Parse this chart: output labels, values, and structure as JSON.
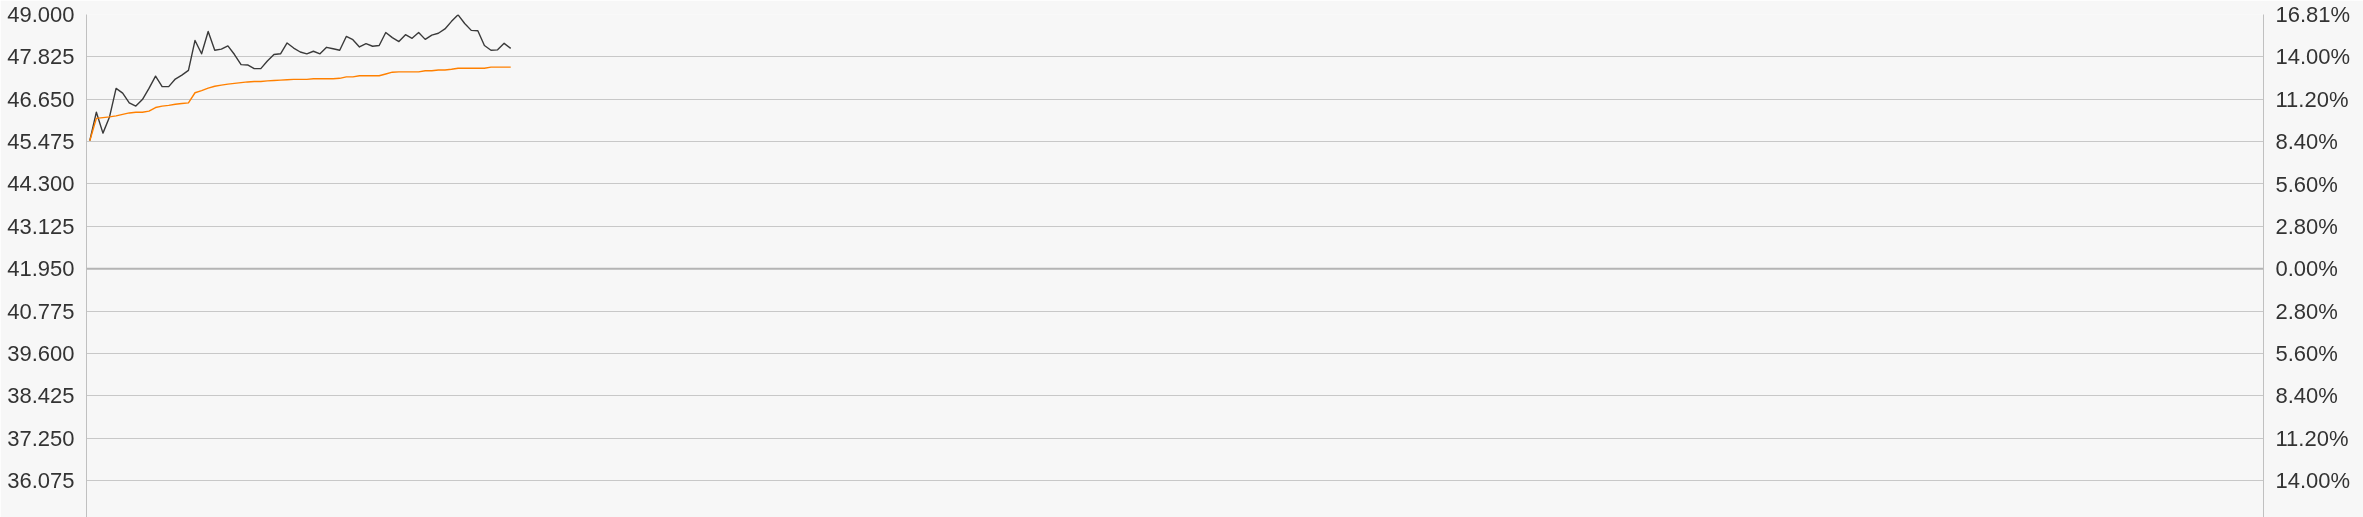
{
  "chart_data": {
    "type": "line",
    "categories": [
      null,
      null,
      null,
      null,
      null,
      null,
      null,
      null,
      null,
      null,
      null,
      null,
      null,
      null,
      null,
      null,
      null,
      null,
      null,
      null,
      null,
      null,
      null,
      null,
      null,
      null,
      null,
      null,
      null,
      null,
      null,
      null,
      null,
      null,
      null,
      null,
      null,
      null,
      null,
      null,
      null,
      null,
      null,
      null,
      null,
      null,
      null,
      null,
      null,
      null,
      null,
      null,
      null,
      null,
      null,
      null,
      null,
      null,
      null,
      null,
      null,
      null,
      null,
      null,
      null,
      null,
      null,
      null,
      null,
      null,
      null,
      null,
      null,
      null,
      null,
      null,
      null,
      null,
      null,
      null,
      null,
      null,
      null,
      null,
      null,
      null,
      null,
      null,
      null,
      null,
      null,
      null,
      null,
      null,
      null,
      null,
      null,
      null,
      null,
      null,
      null,
      null,
      null,
      null,
      null,
      null,
      null,
      null,
      null,
      null,
      null,
      null,
      null,
      null,
      null,
      null,
      null,
      null,
      null,
      null,
      null,
      null,
      null,
      null,
      null,
      null,
      null,
      null,
      null,
      null,
      null,
      null,
      null,
      null,
      null,
      null,
      null,
      null,
      null,
      null,
      null,
      null,
      null,
      null,
      null,
      null,
      null,
      null,
      null,
      null,
      null,
      null,
      null,
      null,
      null,
      null,
      null,
      null,
      null,
      null,
      null,
      null,
      null,
      null,
      null,
      null,
      null,
      null,
      null,
      null,
      null,
      null,
      null,
      null,
      null,
      null,
      null,
      null,
      null,
      null,
      null,
      null,
      null,
      null,
      null,
      null,
      null,
      null,
      null,
      null,
      null,
      null,
      null,
      null,
      null,
      null,
      null,
      null,
      null,
      null,
      null,
      null,
      null,
      null,
      null,
      null,
      null,
      null,
      null,
      null,
      null,
      null,
      null,
      null,
      null,
      null,
      null,
      null,
      null,
      null,
      null,
      null,
      null,
      null,
      null,
      null,
      null,
      null,
      null,
      null,
      null,
      null,
      null,
      null,
      null,
      null,
      null,
      null,
      null,
      null,
      null,
      null,
      null,
      null,
      null,
      null,
      null,
      null,
      null,
      null,
      null,
      null,
      null,
      null,
      null,
      null,
      null,
      null,
      null,
      null,
      null,
      null,
      null,
      null,
      null,
      null,
      null,
      null,
      null,
      null,
      null,
      null,
      null,
      null,
      null,
      null,
      null,
      null,
      null,
      null,
      null,
      null,
      null,
      null,
      null,
      null,
      null,
      null,
      null,
      null,
      null,
      null,
      null,
      null,
      null,
      null,
      null,
      null,
      null,
      null,
      null,
      null,
      null,
      null,
      null,
      null,
      null,
      null,
      null,
      null,
      null,
      null,
      null,
      null,
      null,
      null,
      null,
      null,
      null,
      null,
      null,
      null,
      null,
      null,
      null,
      null,
      null,
      null,
      null,
      null,
      null
    ],
    "series": [
      {
        "color": "#3a3a3a",
        "values": [
          45.5,
          46.29,
          45.71,
          46.16,
          46.95,
          46.82,
          46.55,
          46.46,
          46.64,
          46.95,
          47.29,
          47.0,
          47.0,
          47.21,
          47.32,
          47.45,
          48.28,
          47.91,
          48.53,
          48.01,
          48.04,
          48.13,
          47.89,
          47.61,
          47.6,
          47.5,
          47.5,
          47.71,
          47.89,
          47.91,
          48.21,
          48.07,
          47.96,
          47.91,
          47.98,
          47.91,
          48.09,
          48.05,
          48.01,
          48.39,
          48.3,
          48.1,
          48.19,
          48.12,
          48.14,
          48.5,
          48.36,
          48.25,
          48.44,
          48.34,
          48.5,
          48.31,
          48.43,
          48.48,
          48.6,
          48.81,
          48.99,
          48.75,
          48.56,
          48.55,
          48.14,
          48.01,
          48.02,
          48.2,
          48.06,
          null,
          null,
          null,
          null,
          null,
          null,
          null,
          null,
          null,
          null,
          null,
          null,
          null,
          null,
          null,
          null,
          null,
          null,
          null,
          null,
          null,
          null,
          null,
          null,
          null,
          null,
          null,
          null,
          null,
          null,
          null,
          null,
          null,
          null,
          null,
          null,
          null,
          null,
          null,
          null,
          null,
          null,
          null,
          null,
          null,
          null,
          null,
          null,
          null,
          null,
          null,
          null,
          null,
          null,
          null,
          null,
          null,
          null,
          null,
          null,
          null,
          null,
          null,
          null,
          null,
          null,
          null,
          null,
          null,
          null,
          null,
          null,
          null,
          null,
          null,
          null,
          null,
          null,
          null,
          null,
          null,
          null,
          null,
          null,
          null,
          null,
          null,
          null,
          null,
          null,
          null,
          null,
          null,
          null,
          null,
          null,
          null,
          null,
          null,
          null,
          null,
          null,
          null,
          null,
          null,
          null,
          null,
          null,
          null,
          null,
          null,
          null,
          null,
          null,
          null,
          null,
          null,
          null,
          null,
          null,
          null,
          null,
          null,
          null,
          null,
          null,
          null,
          null,
          null,
          null,
          null,
          null,
          null,
          null,
          null,
          null,
          null,
          null,
          null,
          null,
          null,
          null,
          null,
          null,
          null,
          null,
          null,
          null,
          null,
          null,
          null,
          null,
          null,
          null,
          null,
          null,
          null,
          null,
          null,
          null,
          null,
          null,
          null,
          null,
          null,
          null,
          null,
          null,
          null,
          null,
          null,
          null,
          null,
          null,
          null,
          null,
          null,
          null,
          null,
          null,
          null,
          null,
          null,
          null,
          null,
          null,
          null,
          null,
          null,
          null,
          null,
          null,
          null,
          null,
          null,
          null,
          null,
          null,
          null,
          null,
          null,
          null,
          null,
          null,
          null,
          null,
          null,
          null,
          null,
          null,
          null,
          null,
          null,
          null,
          null,
          null,
          null,
          null,
          null,
          null,
          null,
          null,
          null,
          null,
          null,
          null,
          null,
          null,
          null,
          null,
          null,
          null,
          null,
          null,
          null,
          null,
          null,
          null,
          null,
          null,
          null,
          null,
          null,
          null,
          null,
          null,
          null,
          null,
          null,
          null,
          null,
          null,
          null,
          null,
          null,
          null,
          null,
          null,
          null,
          null,
          null,
          null,
          null,
          null,
          null,
          null
        ]
      },
      {
        "color": "#ff8000",
        "values": [
          45.5,
          46.12,
          46.14,
          46.16,
          46.19,
          46.23,
          46.27,
          46.29,
          46.29,
          46.32,
          46.42,
          46.46,
          46.48,
          46.51,
          46.53,
          46.55,
          46.83,
          46.89,
          46.96,
          47.01,
          47.04,
          47.07,
          47.09,
          47.11,
          47.13,
          47.14,
          47.14,
          47.16,
          47.17,
          47.18,
          47.19,
          47.2,
          47.2,
          47.2,
          47.22,
          47.22,
          47.22,
          47.22,
          47.23,
          47.27,
          47.27,
          47.3,
          47.3,
          47.3,
          47.3,
          47.35,
          47.4,
          47.41,
          47.41,
          47.41,
          47.41,
          47.44,
          47.44,
          47.46,
          47.46,
          47.48,
          47.51,
          47.51,
          47.51,
          47.51,
          47.51,
          47.54,
          47.54,
          47.54,
          47.54,
          null,
          null,
          null,
          null,
          null,
          null,
          null,
          null,
          null,
          null,
          null,
          null,
          null,
          null,
          null,
          null,
          null,
          null,
          null,
          null,
          null,
          null,
          null,
          null,
          null,
          null,
          null,
          null,
          null,
          null,
          null,
          null,
          null,
          null,
          null,
          null,
          null,
          null,
          null,
          null,
          null,
          null,
          null,
          null,
          null,
          null,
          null,
          null,
          null,
          null,
          null,
          null,
          null,
          null,
          null,
          null,
          null,
          null,
          null,
          null,
          null,
          null,
          null,
          null,
          null,
          null,
          null,
          null,
          null,
          null,
          null,
          null,
          null,
          null,
          null,
          null,
          null,
          null,
          null,
          null,
          null,
          null,
          null,
          null,
          null,
          null,
          null,
          null,
          null,
          null,
          null,
          null,
          null,
          null,
          null,
          null,
          null,
          null,
          null,
          null,
          null,
          null,
          null,
          null,
          null,
          null,
          null,
          null,
          null,
          null,
          null,
          null,
          null,
          null,
          null,
          null,
          null,
          null,
          null,
          null,
          null,
          null,
          null,
          null,
          null,
          null,
          null,
          null,
          null,
          null,
          null,
          null,
          null,
          null,
          null,
          null,
          null,
          null,
          null,
          null,
          null,
          null,
          null,
          null,
          null,
          null,
          null,
          null,
          null,
          null,
          null,
          null,
          null,
          null,
          null,
          null,
          null,
          null,
          null,
          null,
          null,
          null,
          null,
          null,
          null,
          null,
          null,
          null,
          null,
          null,
          null,
          null,
          null,
          null,
          null,
          null,
          null,
          null,
          null,
          null,
          null,
          null,
          null,
          null,
          null,
          null,
          null,
          null,
          null,
          null,
          null,
          null,
          null,
          null,
          null,
          null,
          null,
          null,
          null,
          null,
          null,
          null,
          null,
          null,
          null,
          null,
          null,
          null,
          null,
          null,
          null,
          null,
          null,
          null,
          null,
          null,
          null,
          null,
          null,
          null,
          null,
          null,
          null,
          null,
          null,
          null,
          null,
          null,
          null,
          null,
          null,
          null,
          null,
          null,
          null,
          null,
          null,
          null,
          null,
          null,
          null,
          null,
          null,
          null,
          null,
          null,
          null,
          null,
          null,
          null,
          null,
          null,
          null,
          null,
          null,
          null,
          null,
          null,
          null,
          null,
          null,
          null,
          null,
          null,
          null,
          null
        ]
      }
    ],
    "ylim": [
      35.05,
      49.0
    ],
    "yticks": [
      {
        "value": 49.0,
        "label": "49.000"
      },
      {
        "value": 47.825,
        "label": "47.825"
      },
      {
        "value": 46.65,
        "label": "46.650"
      },
      {
        "value": 45.475,
        "label": "45.475"
      },
      {
        "value": 44.3,
        "label": "44.300"
      },
      {
        "value": 43.125,
        "label": "43.125"
      },
      {
        "value": 41.95,
        "label": "41.950"
      },
      {
        "value": 40.775,
        "label": "40.775"
      },
      {
        "value": 39.6,
        "label": "39.600"
      },
      {
        "value": 38.425,
        "label": "38.425"
      },
      {
        "value": 37.25,
        "label": "37.250"
      },
      {
        "value": 36.075,
        "label": "36.075"
      }
    ],
    "y2lim": [
      -16.45,
      16.81
    ],
    "y2ticks": [
      {
        "value": 16.81,
        "label": "16.81%"
      },
      {
        "value": 14.0,
        "label": "14.00%"
      },
      {
        "value": 11.2,
        "label": "11.20%"
      },
      {
        "value": 8.4,
        "label": "8.40%"
      },
      {
        "value": 5.6,
        "label": "5.60%"
      },
      {
        "value": 2.8,
        "label": "2.80%"
      },
      {
        "value": 0,
        "label": "0.00%"
      },
      {
        "value": -2.8,
        "label": "2.80%"
      },
      {
        "value": -5.6,
        "label": "5.60%"
      },
      {
        "value": -8.4,
        "label": "8.40%"
      },
      {
        "value": -11.2,
        "label": "11.20%"
      },
      {
        "value": -14.0,
        "label": "14.00%"
      }
    ],
    "ref_lines": [
      {
        "axis": "y",
        "value": 41.95,
        "color": "#b4b4b4"
      }
    ],
    "grid": "y"
  }
}
